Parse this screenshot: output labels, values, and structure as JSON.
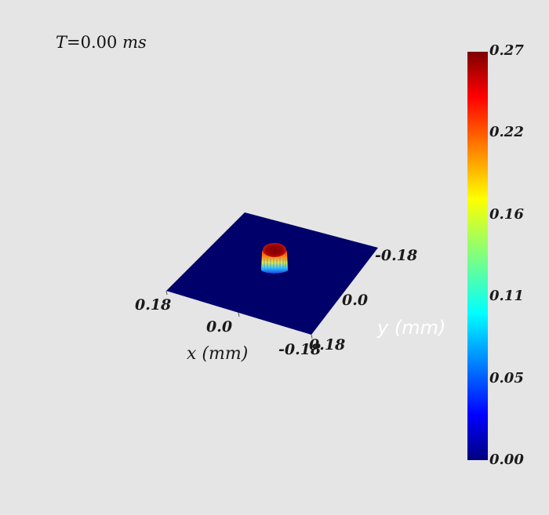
{
  "time": {
    "var": "T",
    "eq": "=",
    "value": "0.00",
    "unit": "ms"
  },
  "chart_data": {
    "type": "surface",
    "x_axis": {
      "label_var": "x",
      "label_unit": "(mm)",
      "ticks": [
        "0.18",
        "0.0",
        "-0.18"
      ],
      "range": [
        -0.18,
        0.18
      ]
    },
    "y_axis": {
      "label_var": "y",
      "label_unit": "(mm)",
      "ticks": [
        "-0.18",
        "0.0",
        "0.18"
      ],
      "range": [
        -0.18,
        0.18
      ]
    },
    "z_range": [
      0.0,
      0.27
    ],
    "peak": {
      "x": 0.0,
      "y": 0.0,
      "value": 0.27
    },
    "colorbar": {
      "colormap": "jet",
      "ticks": [
        "0.27",
        "0.22",
        "0.16",
        "0.11",
        "0.05",
        "0.00"
      ],
      "range": [
        0.0,
        0.27
      ]
    },
    "grid": false,
    "background_color": "#e5e5e6",
    "surface_base_color": "#00006a"
  }
}
